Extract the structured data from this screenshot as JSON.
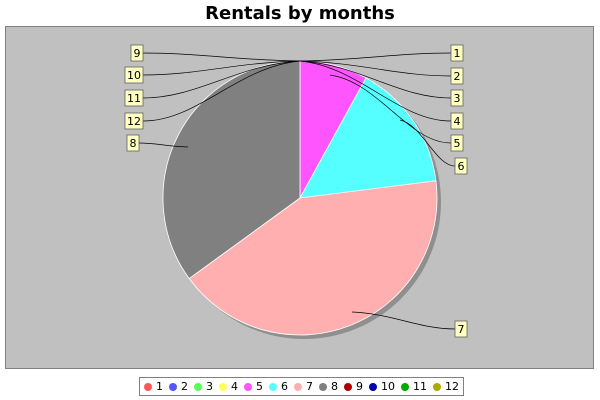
{
  "chart_data": {
    "type": "pie",
    "title": "Rentals by months",
    "categories": [
      "1",
      "2",
      "3",
      "4",
      "5",
      "6",
      "7",
      "8",
      "9",
      "10",
      "11",
      "12"
    ],
    "values": [
      0,
      0,
      0,
      0,
      8,
      15,
      42,
      35,
      0,
      0,
      0,
      0
    ],
    "colors": [
      "#ff5555",
      "#5555ff",
      "#55ff55",
      "#ffff55",
      "#ff55ff",
      "#55ffff",
      "#ffafaf",
      "#808080",
      "#aa0000",
      "#0000aa",
      "#00aa00",
      "#aaaa00"
    ],
    "legend_placement": "bottom",
    "label_style": "callout",
    "label_sides": [
      "right",
      "right",
      "right",
      "right",
      "right",
      "right",
      "right",
      "left",
      "left",
      "left",
      "left",
      "left"
    ]
  }
}
